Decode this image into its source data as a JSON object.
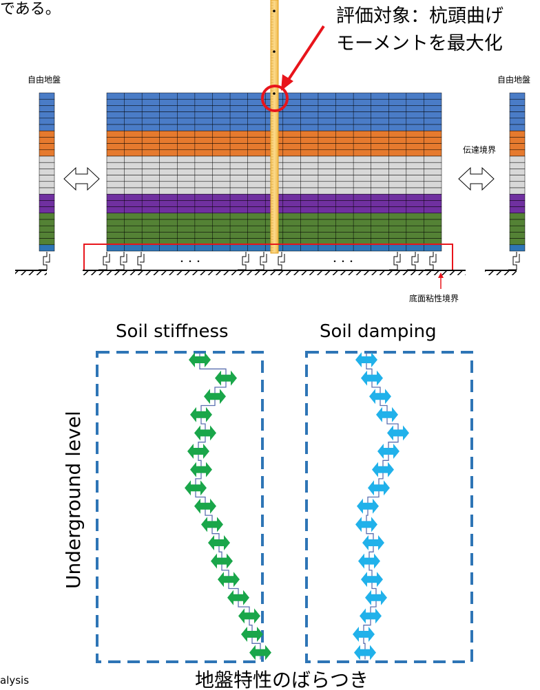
{
  "top_text": "である。",
  "callout": {
    "line1": "評価対象：杭頭曲げ",
    "line2": "モーメントを最大化",
    "color": "#e8141b"
  },
  "labels": {
    "free_field_left": "自由地盤",
    "free_field_right": "自由地盤",
    "transmitting_boundary": "伝達境界",
    "bottom_viscous_boundary": "底面粘性境界",
    "dots_left": "・・・",
    "dots_right": "・・・"
  },
  "soil_layers": [
    {
      "name": "layer-blue",
      "color": "#4a7cc7",
      "rows": 6
    },
    {
      "name": "layer-orange",
      "color": "#e67a2e",
      "rows": 4
    },
    {
      "name": "layer-gray",
      "color": "#d8d8d8",
      "rows": 6
    },
    {
      "name": "layer-purple",
      "color": "#7030a0",
      "rows": 3
    },
    {
      "name": "layer-green",
      "color": "#548235",
      "rows": 5
    },
    {
      "name": "layer-base",
      "color": "#2e75b6",
      "rows": 1
    }
  ],
  "panels": {
    "stiffness_title": "Soil stiffness",
    "damping_title": "Soil damping",
    "axis_label": "Underground level",
    "bottom_title": "地盤特性のばらつき",
    "stiffness_color": "#1aa64a",
    "damping_color": "#21b1ea",
    "box_color": "#2e75b6"
  },
  "footer_fragment": "alysis"
}
